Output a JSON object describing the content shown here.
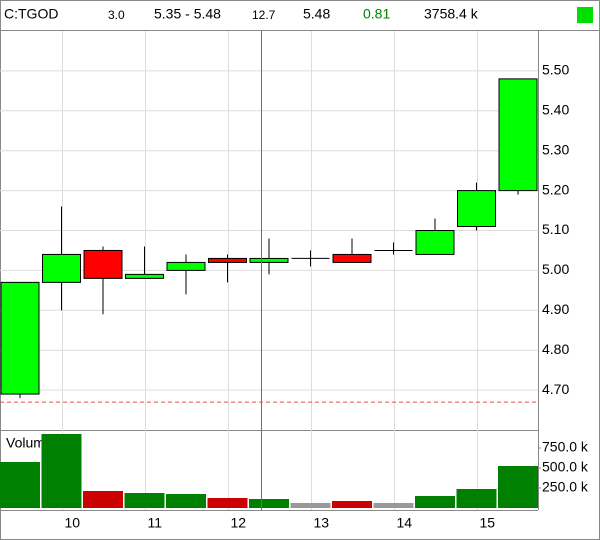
{
  "chart_data": {
    "type": "candlestick",
    "header": [
      "C:TGOD",
      "3.0",
      "5.35 - 5.48",
      "12.7",
      "5.48",
      "0.81",
      "3758.4 k"
    ],
    "categories": [
      null,
      "10",
      null,
      "11",
      null,
      "12",
      null,
      "13",
      null,
      "14",
      null,
      "15",
      null
    ],
    "open": [
      4.69,
      4.97,
      5.05,
      4.98,
      5.0,
      5.03,
      5.02,
      5.03,
      5.04,
      5.05,
      5.04,
      5.11,
      5.2
    ],
    "high": [
      4.97,
      5.16,
      5.06,
      5.06,
      5.04,
      5.04,
      5.08,
      5.05,
      5.08,
      5.07,
      5.13,
      5.22,
      5.48
    ],
    "low": [
      4.68,
      4.9,
      4.89,
      4.98,
      4.94,
      4.97,
      4.99,
      5.01,
      5.02,
      5.04,
      5.04,
      5.1,
      5.19
    ],
    "close": [
      4.97,
      5.04,
      4.98,
      4.99,
      5.02,
      5.02,
      5.03,
      5.03,
      5.02,
      5.05,
      5.1,
      5.2,
      5.48
    ],
    "up_color": "#00ff00",
    "down_color": "#ff0000",
    "reference_line": 4.67,
    "reference_color": "#e05050",
    "ylim": [
      4.6,
      5.6
    ],
    "yticks": [
      {
        "value": 4.7,
        "label": "4.70"
      },
      {
        "value": 4.8,
        "label": "4.80"
      },
      {
        "value": 4.9,
        "label": "4.90"
      },
      {
        "value": 5.0,
        "label": "5.00"
      },
      {
        "value": 5.1,
        "label": "5.10"
      },
      {
        "value": 5.2,
        "label": "5.20"
      },
      {
        "value": 5.3,
        "label": "5.30"
      },
      {
        "value": 5.4,
        "label": "5.40"
      },
      {
        "value": 5.5,
        "label": "5.50"
      }
    ],
    "grid": true,
    "volume": {
      "label": "Volume",
      "values": [
        575000,
        925000,
        212500,
        187500,
        175000,
        125000,
        112500,
        62500,
        87500,
        62500,
        150000,
        237500,
        525000
      ],
      "colors": [
        "#008000",
        "#008000",
        "#cc0000",
        "#008000",
        "#008000",
        "#cc0000",
        "#008000",
        "#999999",
        "#cc0000",
        "#999999",
        "#008000",
        "#008000",
        "#008000"
      ],
      "ylim": [
        0,
        975000
      ],
      "yticks": [
        {
          "value": 250000,
          "label": "250.0 k"
        },
        {
          "value": 500000,
          "label": "500.0 k"
        },
        {
          "value": 750000,
          "label": "750.0 k"
        }
      ]
    }
  }
}
